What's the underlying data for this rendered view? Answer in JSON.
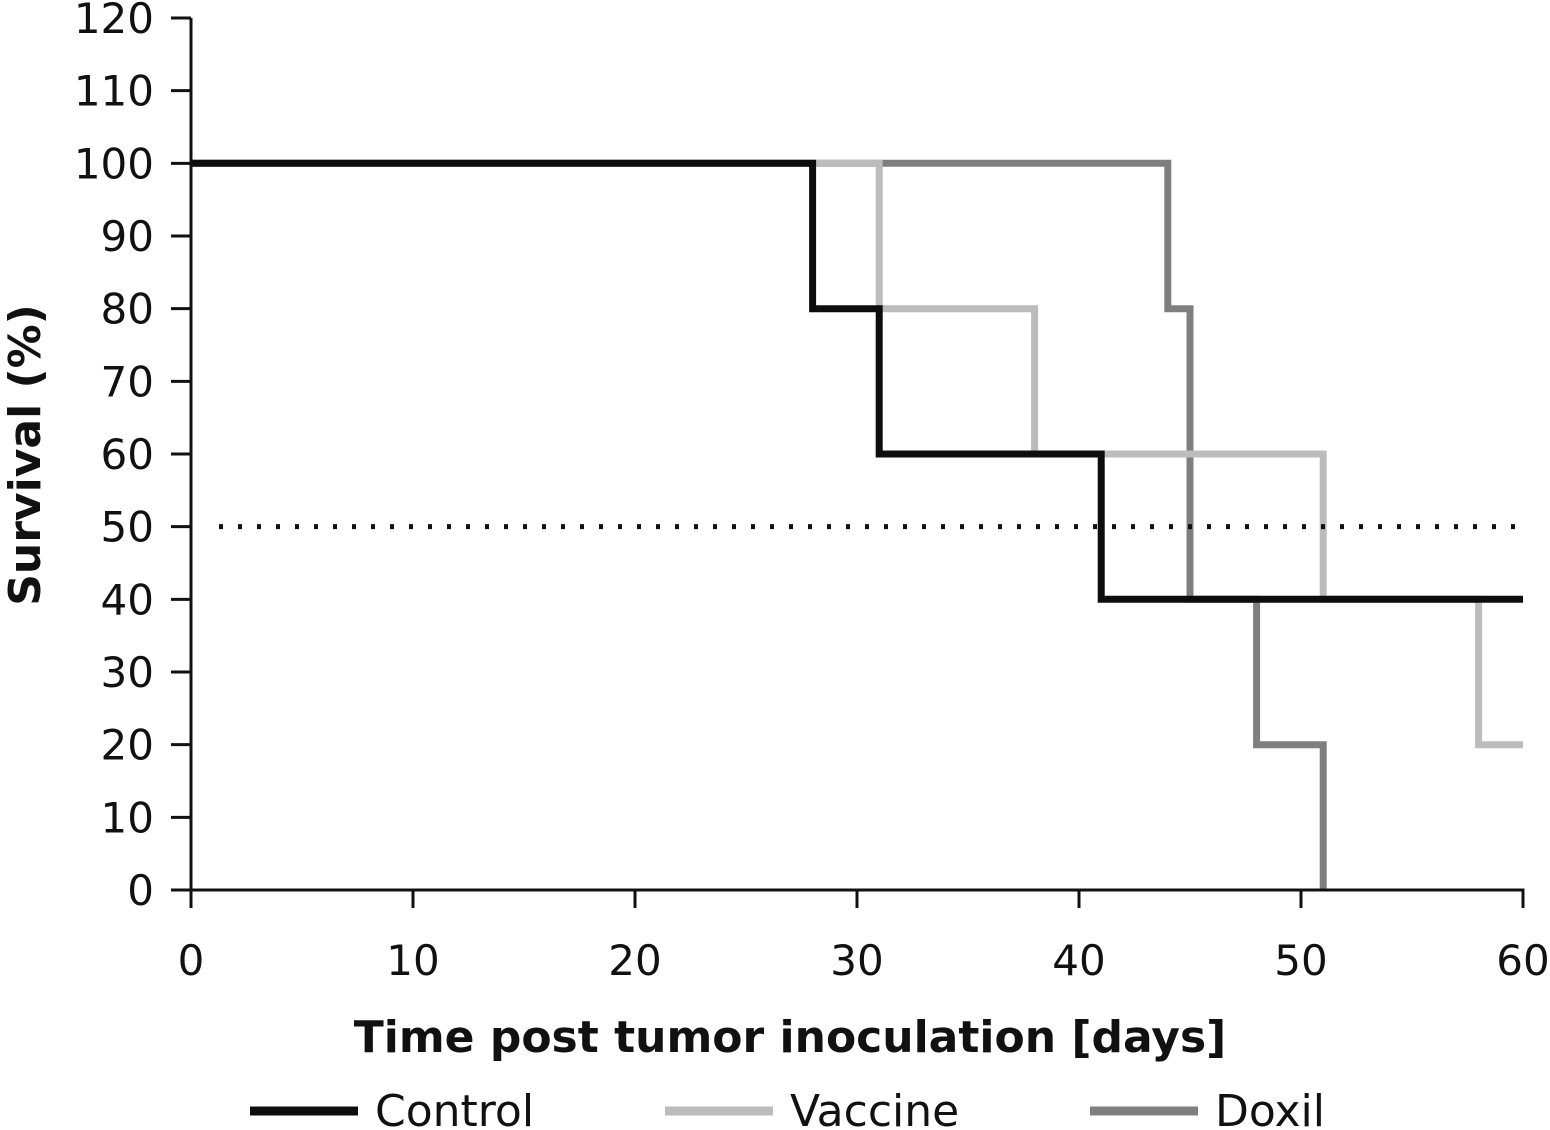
{
  "chart_data": {
    "type": "line",
    "step": true,
    "title": "",
    "xlabel": "Time post tumor inoculation [days]",
    "ylabel": "Survival (%)",
    "xlim": [
      0,
      60
    ],
    "ylim": [
      0,
      120
    ],
    "x_ticks": [
      0,
      10,
      20,
      30,
      40,
      50,
      60
    ],
    "y_ticks": [
      0,
      10,
      20,
      30,
      40,
      50,
      60,
      70,
      80,
      90,
      100,
      110,
      120
    ],
    "grid": false,
    "legend_position": "bottom",
    "reference_line": {
      "y": 50,
      "style": "dotted",
      "color": "#111111"
    },
    "series": [
      {
        "name": "Control",
        "color": "#0d0d0d",
        "x": [
          0,
          28,
          28,
          31,
          31,
          41,
          41,
          60
        ],
        "y": [
          100,
          100,
          80,
          80,
          60,
          60,
          40,
          40
        ]
      },
      {
        "name": "Vaccine",
        "color": "#bcbcbc",
        "x": [
          0,
          31,
          31,
          38,
          38,
          51,
          51,
          58,
          58,
          60
        ],
        "y": [
          100,
          100,
          80,
          80,
          60,
          60,
          40,
          40,
          20,
          20
        ]
      },
      {
        "name": "Doxil",
        "color": "#7f7f7f",
        "x": [
          0,
          44,
          44,
          45,
          45,
          48,
          48,
          51,
          51
        ],
        "y": [
          100,
          100,
          80,
          80,
          40,
          40,
          20,
          20,
          0
        ]
      }
    ]
  }
}
